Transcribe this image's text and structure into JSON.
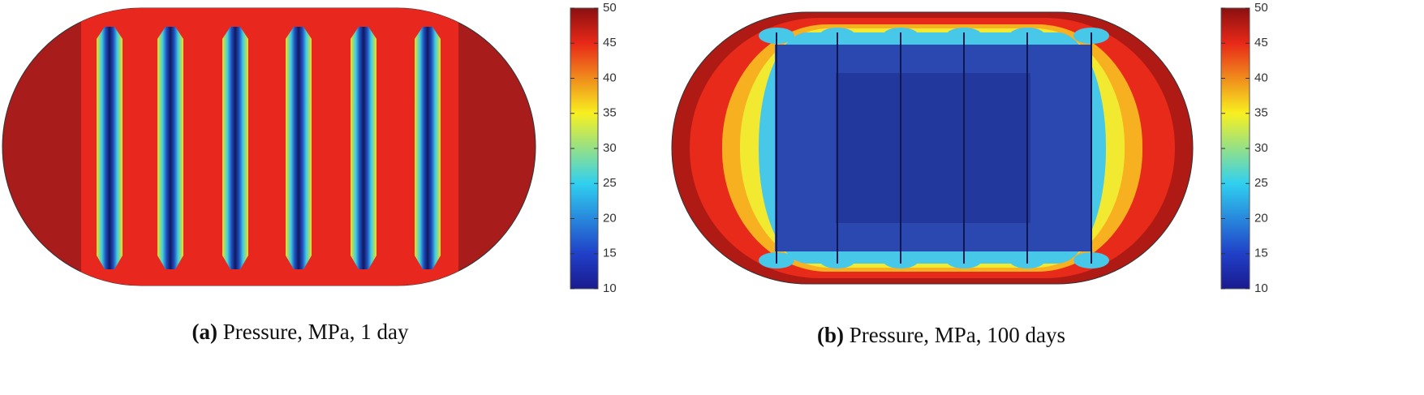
{
  "chart_data": [
    {
      "type": "heatmap",
      "label": "(a)",
      "caption": "Pressure, MPa, 1 day",
      "colormap": "jet",
      "clim": [
        10,
        50
      ],
      "cticks": [
        10,
        15,
        20,
        25,
        30,
        35,
        40,
        45,
        50
      ]
    },
    {
      "type": "heatmap",
      "label": "(b)",
      "caption": "Pressure, MPa, 100 days",
      "colormap": "jet",
      "clim": [
        10,
        50
      ],
      "cticks": [
        10,
        15,
        20,
        25,
        30,
        35,
        40,
        45,
        50
      ]
    }
  ]
}
